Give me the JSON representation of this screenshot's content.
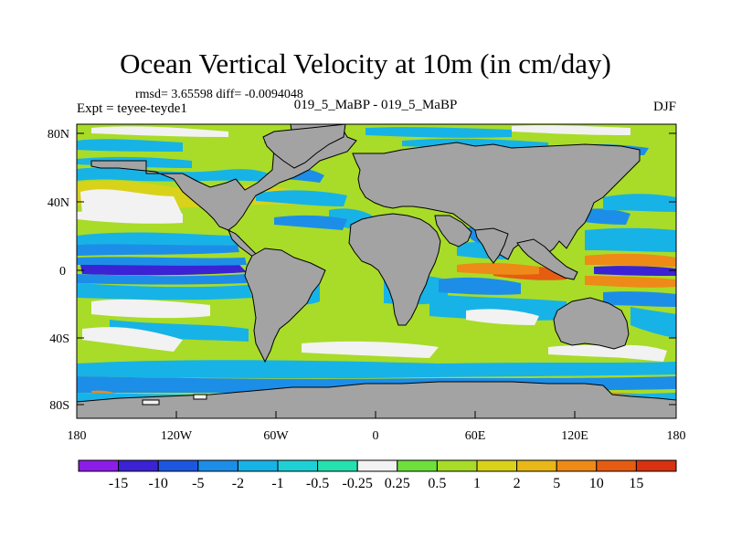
{
  "header": {
    "title": "Ocean Vertical Velocity at 10m (in cm/day)",
    "stats": "rmsd= 3.65598 diff= -0.0094048",
    "experiment": "Expt = teyee-teyde1",
    "runs": "019_5_MaBP - 019_5_MaBP",
    "season": "DJF"
  },
  "axes": {
    "y_ticks": [
      "80N",
      "40N",
      "0",
      "40S",
      "80S"
    ],
    "x_ticks": [
      "180",
      "120W",
      "60W",
      "0",
      "60E",
      "120E",
      "180"
    ]
  },
  "colorbar": {
    "labels": [
      "-15",
      "-10",
      "-5",
      "-2",
      "-1",
      "-0.5",
      "-0.25",
      "0.25",
      "0.5",
      "1",
      "2",
      "5",
      "10",
      "15"
    ],
    "colors": [
      "#8c1ce8",
      "#3b22d4",
      "#1c57e0",
      "#1c8ee8",
      "#17b3e6",
      "#1ed0d6",
      "#27e0b0",
      "#f2f2f2",
      "#6ee03c",
      "#a8dc28",
      "#d9d21a",
      "#e9b818",
      "#ee8a17",
      "#e65c12",
      "#d83210"
    ]
  },
  "map_colors": {
    "land": "#a3a3a3",
    "ocean_base": "#a8dc28",
    "frame": "#000000"
  }
}
